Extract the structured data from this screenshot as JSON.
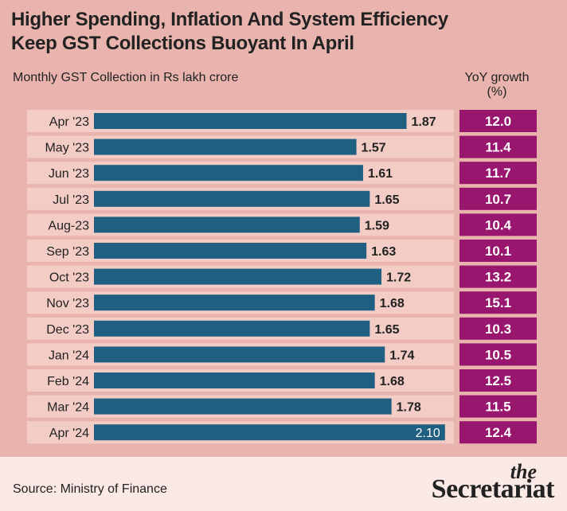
{
  "title_line1": "Higher Spending, Inflation And System Efficiency",
  "title_line2": "Keep GST Collections Buoyant In April",
  "subtitle": "Monthly GST Collection in Rs lakh crore",
  "yoy_header_line1": "YoY growth",
  "yoy_header_line2": "(%)",
  "source": "Source: Ministry of Finance",
  "logo_the": "the",
  "logo_main": "Secretariat",
  "colors": {
    "background": "#e8b4ad",
    "row_band": "#f2ccc5",
    "bar": "#1f5f82",
    "yoy_box": "#99166e",
    "footer": "#fbe9e5"
  },
  "chart_data": {
    "type": "bar",
    "orientation": "horizontal",
    "categories": [
      "Apr '23",
      "May '23",
      "Jun '23",
      "Jul '23",
      "Aug-23",
      "Sep '23",
      "Oct '23",
      "Nov '23",
      "Dec '23",
      "Jan '24",
      "Feb '24",
      "Mar '24",
      "Apr '24"
    ],
    "values": [
      1.87,
      1.57,
      1.61,
      1.65,
      1.59,
      1.63,
      1.72,
      1.68,
      1.65,
      1.74,
      1.68,
      1.78,
      2.1
    ],
    "value_labels": [
      "1.87",
      "1.57",
      "1.61",
      "1.65",
      "1.59",
      "1.63",
      "1.72",
      "1.68",
      "1.65",
      "1.74",
      "1.68",
      "1.78",
      "2.10"
    ],
    "yoy_growth": [
      "12.0",
      "11.4",
      "11.7",
      "10.7",
      "10.4",
      "10.1",
      "13.2",
      "15.1",
      "10.3",
      "10.5",
      "12.5",
      "11.5",
      "12.4"
    ],
    "xlim": [
      0,
      2.12
    ],
    "grid": false,
    "legend": "none"
  }
}
